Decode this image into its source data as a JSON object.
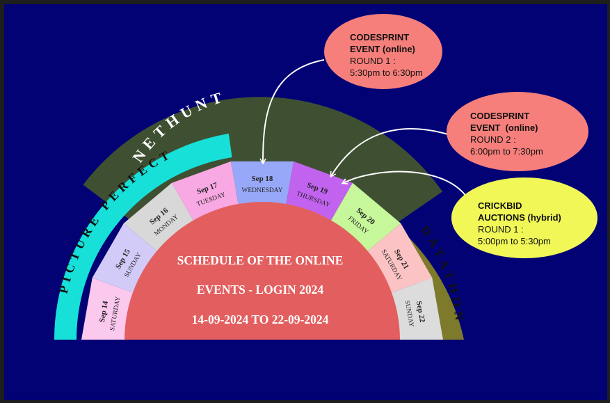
{
  "colors": {
    "background": "#020275",
    "nethunt_band": "#3f5032",
    "picture_perfect_band": "#16e0d8",
    "datathon_band": "#7d7a2c",
    "center": "#e35f5f",
    "bubble_codesprint": "#f67f7b",
    "bubble_crickbid": "#f1f756"
  },
  "bands": {
    "nethunt": "NETHUNT",
    "picture_perfect": "PICTURE PERFECT",
    "datathon": "DATATHON"
  },
  "days": [
    {
      "date": "Sep 14",
      "weekday": "SATURDAY",
      "color": "#fbc8ee"
    },
    {
      "date": "Sep 15",
      "weekday": "SUNDAY",
      "color": "#d2cbf8"
    },
    {
      "date": "Sep 16",
      "weekday": "MONDAY",
      "color": "#d8d8d8"
    },
    {
      "date": "Sep 17",
      "weekday": "TUESDAY",
      "color": "#f8a8e2"
    },
    {
      "date": "Sep 18",
      "weekday": "WEDNESDAY",
      "color": "#98a8f8"
    },
    {
      "date": "Sep 19",
      "weekday": "THURSDAY",
      "color": "#c263f0"
    },
    {
      "date": "Sep 20",
      "weekday": "FRIDAY",
      "color": "#c6f79a"
    },
    {
      "date": "Sep 21",
      "weekday": "SATURDAY",
      "color": "#fcc3c5"
    },
    {
      "date": "Sep 22",
      "weekday": "SUNDAY",
      "color": "#dcdcdc"
    }
  ],
  "center": {
    "line1": "SCHEDULE OF THE ONLINE",
    "line2": "EVENTS - LOGIN 2024",
    "line3": "14-09-2024 TO 22-09-2024"
  },
  "events": [
    {
      "title_1": "CODESPRINT",
      "title_2": "EVENT (online)",
      "round": "ROUND 1 :",
      "time": "5:30pm to 6:30pm",
      "points_to": "Sep 18"
    },
    {
      "title_1": "CODESPRINT",
      "title_2": "EVENT  (online)",
      "round": "ROUND 2 :",
      "time": "6:00pm to 7:30pm",
      "points_to": "Sep 19"
    },
    {
      "title_1": "CRICKBID",
      "title_2": "AUCTIONS (hybrid)",
      "round": "ROUND 1 :",
      "time": "5:00pm to 5:30pm",
      "points_to": "Sep 19"
    }
  ]
}
